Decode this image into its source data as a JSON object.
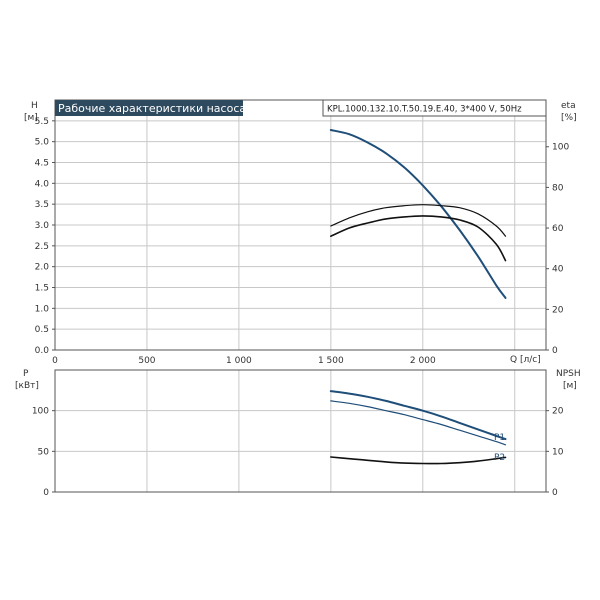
{
  "colors": {
    "title_bg": "#2e4a5f",
    "curve_blue": "#1f4e79",
    "curve_black": "#111111",
    "grid": "#c8c8c8",
    "frame": "#555555"
  },
  "chart_data": [
    {
      "type": "line",
      "title": "Рабочие характеристики насоса",
      "model": "KPL.1000.132.10.T.50.19.E.40, 3*400 V, 50Hz",
      "left_axis": {
        "label": "H",
        "unit": "[м]",
        "ylim": [
          0,
          6.0
        ],
        "ticks": [
          "0.0",
          "0.5",
          "1.0",
          "1.5",
          "2.0",
          "2.5",
          "3.0",
          "3.5",
          "4.0",
          "4.5",
          "5.0",
          "5.5"
        ],
        "tick_values": [
          0,
          0.5,
          1.0,
          1.5,
          2.0,
          2.5,
          3.0,
          3.5,
          4.0,
          4.5,
          5.0,
          5.5
        ]
      },
      "right_axis": {
        "label": "eta",
        "unit": "[%]",
        "ylim": [
          0,
          123
        ],
        "ticks": [
          "0",
          "20",
          "40",
          "60",
          "80",
          "100"
        ],
        "tick_values": [
          0,
          20,
          40,
          60,
          80,
          100
        ]
      },
      "x_axis": {
        "label": "Q [л/с]",
        "xlim": [
          0,
          2670
        ],
        "ticks": [
          "0",
          "500",
          "1 000",
          "1 500",
          "2 000"
        ],
        "tick_values": [
          0,
          500,
          1000,
          1500,
          2000
        ],
        "grid_values": [
          0,
          500,
          1000,
          1500,
          2000,
          2500
        ]
      },
      "grid": true,
      "series": [
        {
          "axis": "left",
          "color": "#1f4e79",
          "width": 2,
          "x": [
            1500,
            1600,
            1700,
            1800,
            1900,
            2000,
            2100,
            2200,
            2300,
            2400,
            2450
          ],
          "y": [
            5.28,
            5.18,
            4.98,
            4.72,
            4.38,
            3.95,
            3.45,
            2.88,
            2.25,
            1.55,
            1.25
          ]
        },
        {
          "axis": "right",
          "color": "#111111",
          "width": 1.6,
          "x": [
            1500,
            1600,
            1700,
            1800,
            1900,
            2000,
            2100,
            2200,
            2300,
            2400,
            2450
          ],
          "y": [
            56,
            60,
            62.5,
            64.5,
            65.5,
            66,
            65.5,
            64,
            60.5,
            52,
            44
          ]
        },
        {
          "axis": "right",
          "color": "#111111",
          "width": 1.2,
          "x": [
            1500,
            1600,
            1700,
            1800,
            1900,
            2000,
            2100,
            2200,
            2300,
            2400,
            2450
          ],
          "y": [
            61,
            65,
            68,
            70,
            71,
            71.5,
            71,
            70,
            67,
            61,
            56
          ]
        }
      ]
    },
    {
      "type": "line",
      "left_axis": {
        "label": "P",
        "unit": "[кВт]",
        "ylim": [
          0,
          150
        ],
        "ticks": [
          "0",
          "50",
          "100"
        ],
        "tick_values": [
          0,
          50,
          100
        ]
      },
      "right_axis": {
        "label": "NPSH",
        "unit": "[м]",
        "ylim": [
          0,
          30
        ],
        "ticks": [
          "0",
          "10",
          "20"
        ],
        "tick_values": [
          0,
          10,
          20
        ]
      },
      "x_axis": {
        "xlim": [
          0,
          2670
        ],
        "grid_values": [
          0,
          500,
          1000,
          1500,
          2000,
          2500
        ]
      },
      "grid": true,
      "series": [
        {
          "name": "P1",
          "axis": "left",
          "color": "#1f4e79",
          "width": 2,
          "x": [
            1500,
            1600,
            1700,
            1800,
            1900,
            2000,
            2100,
            2200,
            2300,
            2400,
            2450
          ],
          "y": [
            124,
            121,
            117,
            112,
            106,
            100,
            93,
            85,
            77,
            69,
            65
          ]
        },
        {
          "name": "P2",
          "axis": "left",
          "color": "#1f4e79",
          "width": 1.2,
          "x": [
            1500,
            1600,
            1700,
            1800,
            1900,
            2000,
            2100,
            2200,
            2300,
            2400,
            2450
          ],
          "y": [
            112,
            109,
            105,
            100,
            95,
            89,
            83,
            76,
            69,
            62,
            58
          ]
        },
        {
          "axis": "right",
          "color": "#111111",
          "width": 1.6,
          "x": [
            1500,
            1600,
            1700,
            1800,
            1900,
            2000,
            2100,
            2200,
            2300,
            2400,
            2450
          ],
          "y": [
            8.6,
            8.2,
            7.8,
            7.4,
            7.1,
            7.0,
            7.0,
            7.2,
            7.6,
            8.2,
            8.5
          ]
        }
      ]
    }
  ]
}
